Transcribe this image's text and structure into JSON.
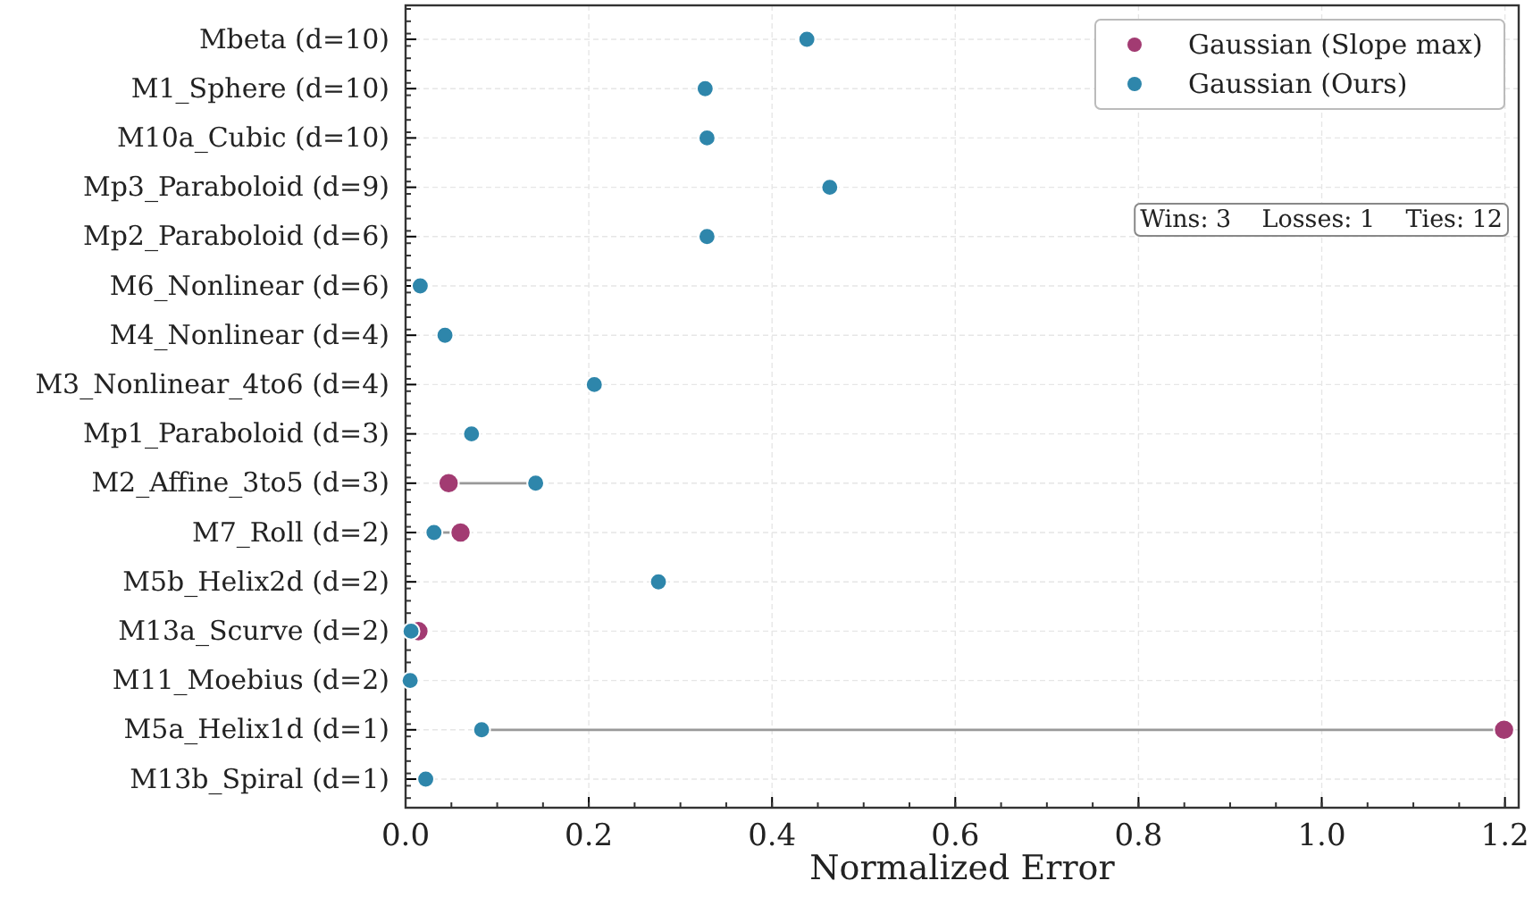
{
  "chart_data": {
    "type": "scatter",
    "xlabel": "Normalized Error",
    "categories": [
      "Mbeta (d=10)",
      "M1_Sphere (d=10)",
      "M10a_Cubic (d=10)",
      "Mp3_Paraboloid (d=9)",
      "Mp2_Paraboloid (d=6)",
      "M6_Nonlinear (d=6)",
      "M4_Nonlinear (d=4)",
      "M3_Nonlinear_4to6 (d=4)",
      "Mp1_Paraboloid (d=3)",
      "M2_Affine_3to5 (d=3)",
      "M7_Roll (d=2)",
      "M5b_Helix2d (d=2)",
      "M13a_Scurve (d=2)",
      "M11_Moebius (d=2)",
      "M5a_Helix1d (d=1)",
      "M13b_Spiral (d=1)"
    ],
    "orientation": "horizontal",
    "series": [
      {
        "name": "Gaussian (Slope max)",
        "color": "#a23b72",
        "values": [
          null,
          null,
          null,
          null,
          null,
          null,
          null,
          null,
          null,
          0.047,
          0.06,
          null,
          0.014,
          null,
          1.199,
          null
        ]
      },
      {
        "name": "Gaussian (Ours)",
        "color": "#2e86ab",
        "values": [
          0.438,
          0.327,
          0.329,
          0.463,
          0.329,
          0.016,
          0.043,
          0.206,
          0.072,
          0.142,
          0.031,
          0.276,
          0.006,
          0.005,
          0.083,
          0.022
        ]
      }
    ],
    "xlim": [
      0,
      1.215
    ],
    "xticks": [
      {
        "value": 0,
        "label": "0.0"
      },
      0.2,
      0.4,
      0.6,
      0.8,
      {
        "value": 1,
        "label": "1.0"
      },
      1.2
    ],
    "grid": true,
    "legend": "top right",
    "marker": "circle",
    "annotations": [
      "Wins: 3    Losses: 1    Ties: 12"
    ]
  }
}
